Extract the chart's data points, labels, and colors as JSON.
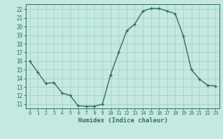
{
  "x": [
    0,
    1,
    2,
    3,
    4,
    5,
    6,
    7,
    8,
    9,
    10,
    11,
    12,
    13,
    14,
    15,
    16,
    17,
    18,
    19,
    20,
    21,
    22,
    23
  ],
  "y": [
    16.0,
    14.7,
    13.4,
    13.5,
    12.3,
    12.0,
    10.8,
    10.75,
    10.75,
    11.0,
    14.4,
    17.0,
    19.5,
    20.3,
    21.8,
    22.1,
    22.1,
    21.8,
    21.5,
    18.9,
    15.0,
    13.9,
    13.2,
    13.1
  ],
  "line_color": "#2d6e62",
  "marker": "+",
  "marker_size": 3.5,
  "marker_lw": 1.0,
  "line_width": 1.0,
  "bg_color": "#c5e8e0",
  "grid_color": "#9ecec4",
  "tick_color": "#2d6e62",
  "label_color": "#2d6e62",
  "xlabel": "Humidex (Indice chaleur)",
  "ylim": [
    10.5,
    22.6
  ],
  "xlim": [
    -0.5,
    23.5
  ],
  "yticks": [
    11,
    12,
    13,
    14,
    15,
    16,
    17,
    18,
    19,
    20,
    21,
    22
  ],
  "xticks": [
    0,
    1,
    2,
    3,
    4,
    5,
    6,
    7,
    8,
    9,
    10,
    11,
    12,
    13,
    14,
    15,
    16,
    17,
    18,
    19,
    20,
    21,
    22,
    23
  ],
  "font_size_x": 5.0,
  "font_size_y": 5.5,
  "font_size_xlabel": 6.5
}
